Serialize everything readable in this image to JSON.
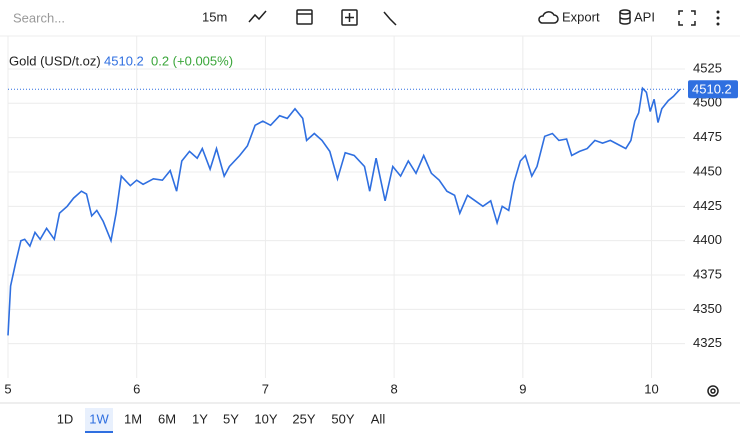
{
  "toolbar": {
    "search_placeholder": "Search...",
    "interval": "15m",
    "export": "Export",
    "api": "API"
  },
  "chart_data": {
    "type": "line",
    "change": "0.2 (+0.005%)",
    "xlim": [
      5,
      10.26
    ],
    "xticks": [
      5,
      6,
      7,
      8,
      9,
      10
    ],
    "ylim": [
      4300,
      4549
    ],
    "yticks": [
      4325,
      4350,
      4375,
      4400,
      4425,
      4450,
      4475,
      4500,
      4525
    ],
    "grid": true,
    "series": [
      {
        "name": "Gold (USD/t.oz)",
        "color": "#2f6fe0",
        "x": [
          5.0,
          5.02,
          5.06,
          5.1,
          5.13,
          5.17,
          5.21,
          5.25,
          5.3,
          5.36,
          5.4,
          5.46,
          5.51,
          5.57,
          5.61,
          5.65,
          5.69,
          5.74,
          5.8,
          5.84,
          5.88,
          5.91,
          5.95,
          6.0,
          6.05,
          6.13,
          6.2,
          6.26,
          6.31,
          6.35,
          6.41,
          6.47,
          6.51,
          6.57,
          6.62,
          6.68,
          6.72,
          6.8,
          6.86,
          6.92,
          6.98,
          7.04,
          7.11,
          7.17,
          7.23,
          7.29,
          7.32,
          7.38,
          7.44,
          7.5,
          7.56,
          7.62,
          7.69,
          7.77,
          7.81,
          7.86,
          7.93,
          7.99,
          8.05,
          8.11,
          8.17,
          8.23,
          8.29,
          8.35,
          8.41,
          8.47,
          8.51,
          8.57,
          8.63,
          8.69,
          8.75,
          8.8,
          8.84,
          8.89,
          8.93,
          8.98,
          9.02,
          9.07,
          9.11,
          9.17,
          9.23,
          9.28,
          9.34,
          9.38,
          9.44,
          9.5,
          9.56,
          9.62,
          9.68,
          9.74,
          9.8,
          9.84,
          9.87,
          9.9,
          9.93,
          9.96,
          9.99,
          10.02,
          10.05,
          10.08,
          10.13,
          10.17,
          10.22
        ],
        "values": [
          4331,
          4367,
          4384,
          4400,
          4401,
          4396,
          4406,
          4401,
          4409,
          4401,
          4420,
          4425,
          4431,
          4436,
          4434,
          4418,
          4422,
          4414,
          4400,
          4420,
          4447,
          4444,
          4440,
          4444,
          4441,
          4445,
          4444,
          4451,
          4436,
          4458,
          4465,
          4460,
          4467,
          4452,
          4467,
          4447,
          4454,
          4462,
          4469,
          4484,
          4487,
          4484,
          4491,
          4489,
          4496,
          4489,
          4473,
          4478,
          4473,
          4465,
          4445,
          4464,
          4462,
          4454,
          4436,
          4460,
          4429,
          4454,
          4447,
          4458,
          4449,
          4462,
          4449,
          4444,
          4436,
          4433,
          4420,
          4433,
          4429,
          4425,
          4429,
          4413,
          4425,
          4422,
          4442,
          4458,
          4462,
          4447,
          4454,
          4476,
          4478,
          4473,
          4474,
          4462,
          4465,
          4467,
          4473,
          4471,
          4473,
          4470,
          4467,
          4473,
          4487,
          4493,
          4511,
          4508,
          4494,
          4503,
          4486,
          4496,
          4502,
          4505,
          4510.2
        ]
      }
    ]
  },
  "ranges": [
    "1D",
    "1W",
    "1M",
    "6M",
    "1Y",
    "5Y",
    "10Y",
    "25Y",
    "50Y",
    "All"
  ],
  "selected_range_index": 1
}
